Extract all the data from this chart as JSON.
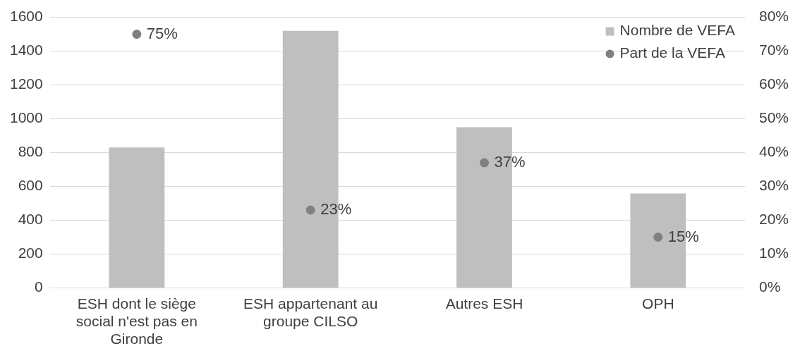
{
  "chart_data": {
    "type": "bar",
    "categories": [
      "ESH dont le siège social n'est pas en Gironde",
      "ESH appartenant au groupe CILSO",
      "Autres ESH",
      "OPH"
    ],
    "series": [
      {
        "name": "Nombre de VEFA",
        "color": "#bfbfbf",
        "values": [
          830,
          1520,
          950,
          558
        ]
      },
      {
        "name": "Part de la VEFA",
        "type": "scatter",
        "axis": "y2",
        "color": "#808080",
        "values": [
          75,
          23,
          37,
          15
        ],
        "value_labels": [
          "75%",
          "23%",
          "37%",
          "15%"
        ]
      }
    ],
    "ylim": [
      0,
      1600
    ],
    "yticks": [
      0,
      200,
      400,
      600,
      800,
      1000,
      1200,
      1400,
      1600
    ],
    "y2lim": [
      0,
      80
    ],
    "y2ticks": [
      {
        "value": 0,
        "label": "0%"
      },
      {
        "value": 10,
        "label": "10%"
      },
      {
        "value": 20,
        "label": "20%"
      },
      {
        "value": 30,
        "label": "30%"
      },
      {
        "value": 40,
        "label": "40%"
      },
      {
        "value": 50,
        "label": "50%"
      },
      {
        "value": 60,
        "label": "60%"
      },
      {
        "value": 70,
        "label": "70%"
      },
      {
        "value": 80,
        "label": "80%"
      }
    ],
    "grid": "y",
    "legend": "top right",
    "marker": "circle"
  }
}
